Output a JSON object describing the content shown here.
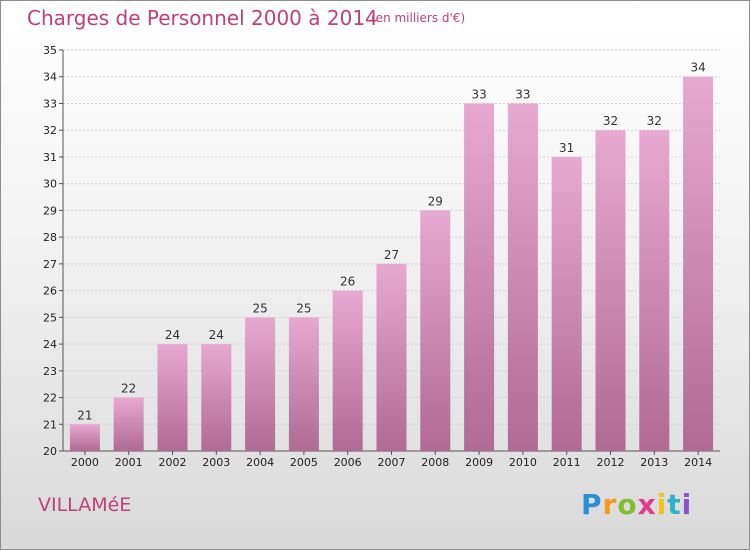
{
  "chart_data": {
    "type": "bar",
    "title": "Charges de Personnel 2000 à 2014",
    "subtitle": "(en milliers d'€)",
    "categories": [
      "2000",
      "2001",
      "2002",
      "2003",
      "2004",
      "2005",
      "2006",
      "2007",
      "2008",
      "2009",
      "2010",
      "2011",
      "2012",
      "2013",
      "2014"
    ],
    "values": [
      21,
      22,
      24,
      24,
      25,
      25,
      26,
      27,
      29,
      33,
      33,
      31,
      32,
      32,
      34
    ],
    "ylim": [
      20,
      35
    ],
    "yticks": [
      20,
      21,
      22,
      23,
      24,
      25,
      26,
      27,
      28,
      29,
      30,
      31,
      32,
      33,
      34,
      35
    ],
    "grid": true,
    "bar_color_top": "#e7a9d0",
    "bar_color_bottom": "#b06a93"
  },
  "place_name": "VILLAMéE",
  "logo": {
    "letters": [
      "P",
      "r",
      "o",
      "x",
      "i",
      "t",
      "i"
    ],
    "colors": [
      "#2b8fd6",
      "#f39a1b",
      "#7fbf2f",
      "#e03c8a",
      "#f3c11b",
      "#2bb3c9",
      "#8c52c9"
    ]
  }
}
